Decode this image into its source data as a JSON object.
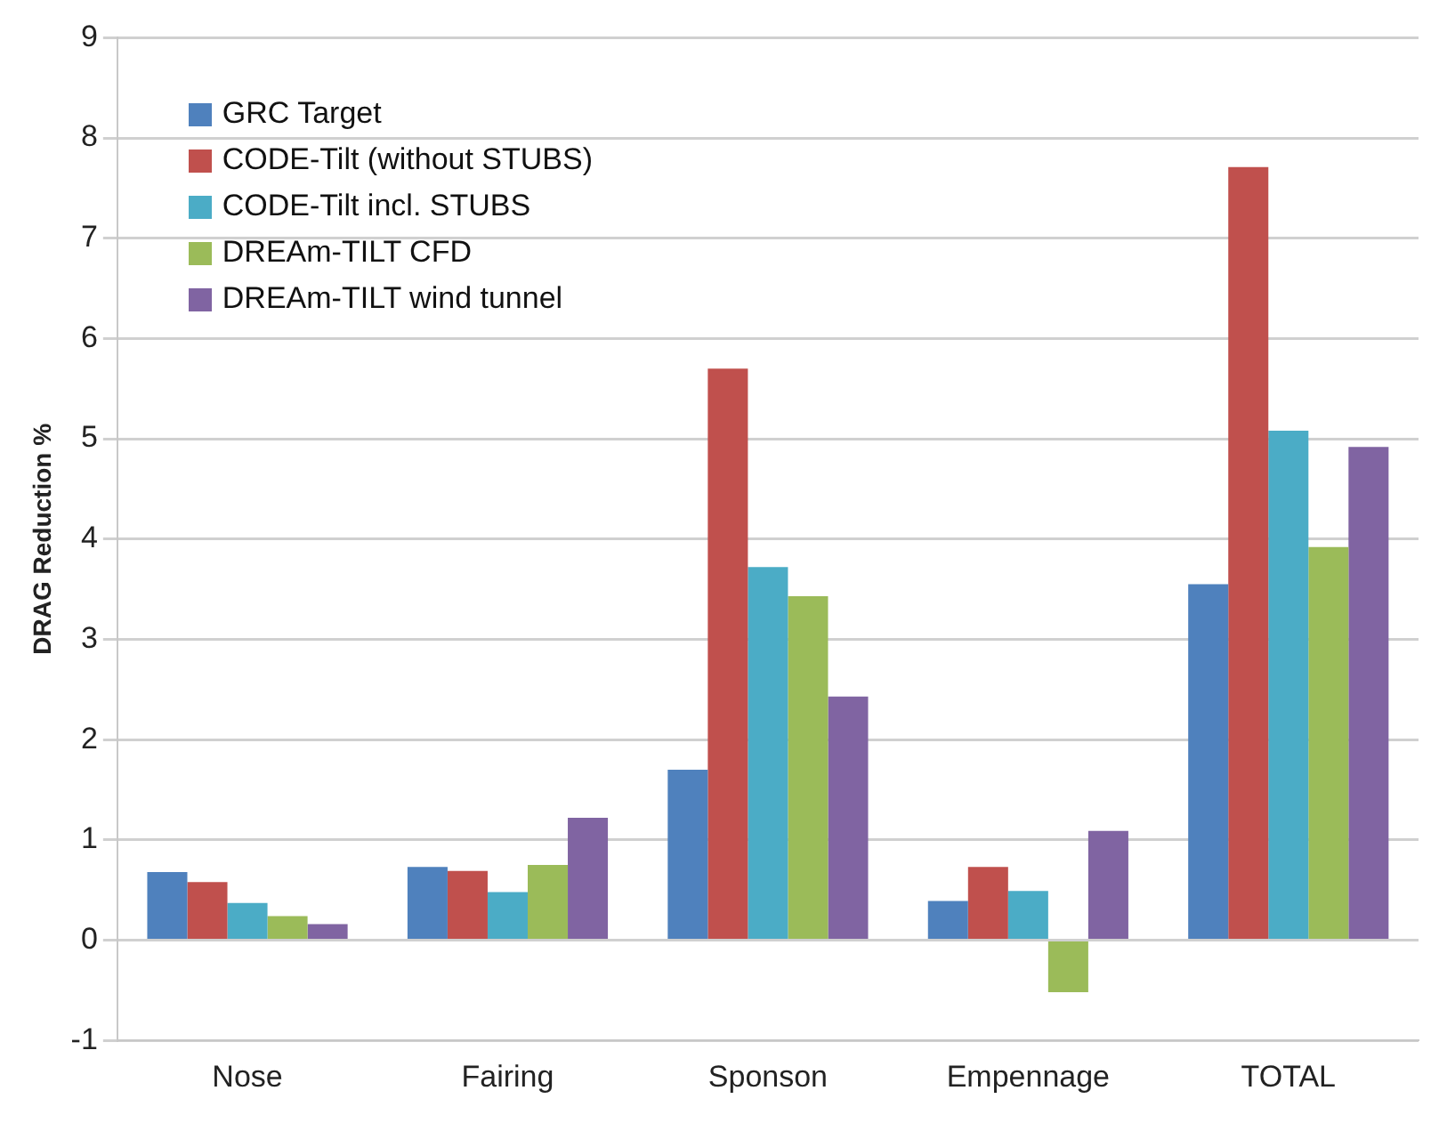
{
  "chart_data": {
    "type": "bar",
    "ylabel": "DRAG Reduction %",
    "categories": [
      "Nose",
      "Fairing",
      "Sponson",
      "Empennage",
      "TOTAL"
    ],
    "series": [
      {
        "name": "GRC Target",
        "color": "#4f81bd",
        "values": [
          0.68,
          0.73,
          1.7,
          0.39,
          3.55
        ]
      },
      {
        "name": "CODE-Tilt (without STUBS)",
        "color": "#c0504d",
        "values": [
          0.58,
          0.69,
          5.7,
          0.73,
          7.71
        ]
      },
      {
        "name": "CODE-Tilt incl. STUBS",
        "color": "#4bacc6",
        "values": [
          0.37,
          0.48,
          3.72,
          0.49,
          5.08
        ]
      },
      {
        "name": "DREAm-TILT CFD",
        "color": "#9bbb59",
        "values": [
          0.24,
          0.75,
          3.43,
          -0.52,
          3.92
        ]
      },
      {
        "name": "DREAm-TILT wind tunnel",
        "color": "#8064a2",
        "values": [
          0.16,
          1.22,
          2.43,
          1.09,
          4.92
        ]
      }
    ],
    "ylim": [
      -1,
      9
    ],
    "yticks": [
      -1,
      0,
      1,
      2,
      3,
      4,
      5,
      6,
      7,
      8,
      9
    ],
    "grid": "y",
    "legend": "top left"
  }
}
